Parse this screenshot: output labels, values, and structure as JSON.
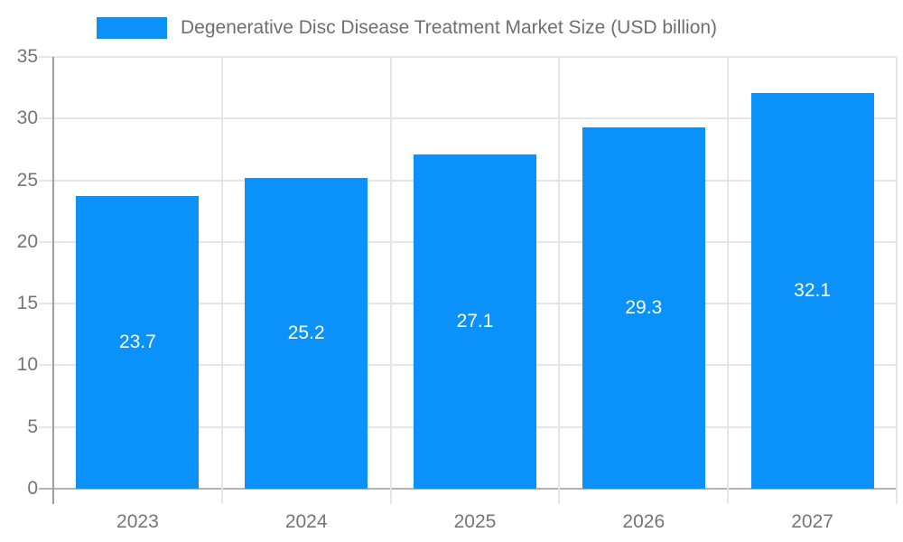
{
  "legend": {
    "title": "Degenerative Disc Disease Treatment Market Size (USD billion)"
  },
  "chart_data": {
    "type": "bar",
    "title": "Degenerative Disc Disease Treatment Market Size (USD billion)",
    "categories": [
      "2023",
      "2024",
      "2025",
      "2026",
      "2027"
    ],
    "values": [
      23.7,
      25.2,
      27.1,
      29.3,
      32.1
    ],
    "bar_labels": [
      "23.7",
      "25.2",
      "27.1",
      "29.3",
      "32.1"
    ],
    "xlabel": "",
    "ylabel": "",
    "ylim": [
      0,
      35
    ],
    "y_ticks": [
      0,
      5,
      10,
      15,
      20,
      25,
      30,
      35
    ],
    "grid": true,
    "legend_position": "top"
  },
  "colors": {
    "bar": "#0a91fa",
    "gridline": "#e6e6e6",
    "axis_line": "#9e9e9e",
    "baseline": "#b3b3b3",
    "axis_text": "#757575",
    "bar_label": "#ffffff",
    "background": "#ffffff"
  }
}
